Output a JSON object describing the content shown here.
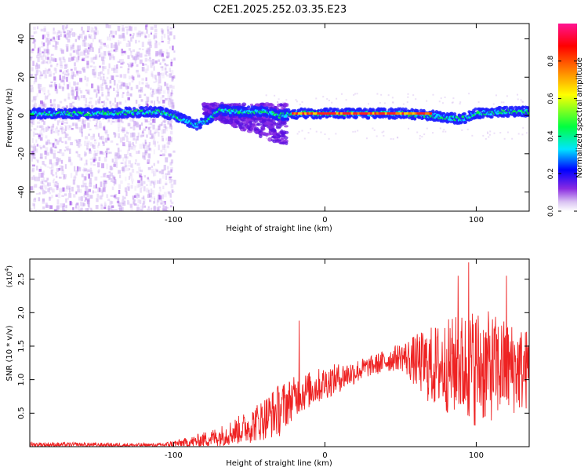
{
  "figure_title": "C2E1.2025.252.03.35.E23",
  "chart_data": [
    {
      "type": "heatmap",
      "title": "C2E1.2025.252.03.35.E23",
      "xlabel": "Height of straight line (km)",
      "ylabel": "Frequency (Hz)",
      "xlim": [
        -195,
        135
      ],
      "ylim": [
        -50,
        48
      ],
      "x_ticks": [
        {
          "value": -100,
          "label": "-100"
        },
        {
          "value": 0,
          "label": "0"
        },
        {
          "value": 100,
          "label": "100"
        }
      ],
      "y_ticks": [
        {
          "value": 40,
          "label": "40"
        },
        {
          "value": 20,
          "label": "20"
        },
        {
          "value": 0,
          "label": "0"
        },
        {
          "value": -20,
          "label": "-20"
        },
        {
          "value": -40,
          "label": "-40"
        }
      ],
      "colorbar": {
        "label": "Normalized spectral amplitude",
        "range": [
          0,
          1
        ],
        "ticks": [
          {
            "value": 0.0,
            "label": "0.0"
          },
          {
            "value": 0.2,
            "label": "0.2"
          },
          {
            "value": 0.4,
            "label": "0.4"
          },
          {
            "value": 0.6,
            "label": "0.6"
          },
          {
            "value": 0.8,
            "label": "0.8"
          }
        ],
        "colors": [
          "#ffffff",
          "#d9c2f2",
          "#8a2be2",
          "#0000ff",
          "#00e5ff",
          "#00ff40",
          "#ffff00",
          "#ff8000",
          "#ff0000",
          "#ff1493"
        ]
      },
      "ridge": [
        {
          "x": -195,
          "y": 1
        },
        {
          "x": -150,
          "y": 1
        },
        {
          "x": -110,
          "y": 2
        },
        {
          "x": -100,
          "y": 0
        },
        {
          "x": -85,
          "y": -5
        },
        {
          "x": -78,
          "y": -3
        },
        {
          "x": -70,
          "y": 3
        },
        {
          "x": -60,
          "y": 2
        },
        {
          "x": -40,
          "y": 2
        },
        {
          "x": -30,
          "y": 0
        },
        {
          "x": -20,
          "y": 1
        },
        {
          "x": 0,
          "y": 1
        },
        {
          "x": 50,
          "y": 1
        },
        {
          "x": 70,
          "y": 0
        },
        {
          "x": 90,
          "y": -2
        },
        {
          "x": 100,
          "y": 1
        },
        {
          "x": 120,
          "y": 2
        },
        {
          "x": 135,
          "y": 2
        }
      ],
      "high_segment": {
        "x": [
          -22,
          70
        ],
        "y": 1
      }
    },
    {
      "type": "line",
      "xlabel": "Height of straight line (km)",
      "ylabel": "SNR (10 * v/v)",
      "y_multiplier": "(x10",
      "y_multiplier_exp": "4",
      "xlim": [
        -195,
        135
      ],
      "ylim": [
        0,
        2.8
      ],
      "x_ticks": [
        {
          "value": -100,
          "label": "-100"
        },
        {
          "value": 0,
          "label": "0"
        },
        {
          "value": 100,
          "label": "100"
        }
      ],
      "y_ticks": [
        {
          "value": 0.5,
          "label": "0.5"
        },
        {
          "value": 1.0,
          "label": "1.0"
        },
        {
          "value": 1.5,
          "label": "1.5"
        },
        {
          "value": 2.0,
          "label": "2.0"
        },
        {
          "value": 2.5,
          "label": "2.5"
        }
      ],
      "series": [
        {
          "name": "SNR",
          "color": "#ee2222",
          "envelope": [
            {
              "x": -195,
              "base": 0.03,
              "amp": 0.04
            },
            {
              "x": -110,
              "base": 0.02,
              "amp": 0.03
            },
            {
              "x": -90,
              "base": 0.06,
              "amp": 0.08
            },
            {
              "x": -70,
              "base": 0.15,
              "amp": 0.15
            },
            {
              "x": -50,
              "base": 0.3,
              "amp": 0.25
            },
            {
              "x": -30,
              "base": 0.55,
              "amp": 0.4
            },
            {
              "x": -20,
              "base": 0.75,
              "amp": 0.3
            },
            {
              "x": 0,
              "base": 0.95,
              "amp": 0.25
            },
            {
              "x": 30,
              "base": 1.2,
              "amp": 0.15
            },
            {
              "x": 50,
              "base": 1.35,
              "amp": 0.2
            },
            {
              "x": 70,
              "base": 1.2,
              "amp": 0.6
            },
            {
              "x": 100,
              "base": 1.2,
              "amp": 0.9
            },
            {
              "x": 135,
              "base": 1.15,
              "amp": 0.6
            }
          ],
          "spikes": [
            {
              "x": -17,
              "y": 1.88
            },
            {
              "x": 95,
              "y": 2.75
            },
            {
              "x": 88,
              "y": 2.55
            },
            {
              "x": 120,
              "y": 2.55
            }
          ]
        }
      ]
    }
  ]
}
